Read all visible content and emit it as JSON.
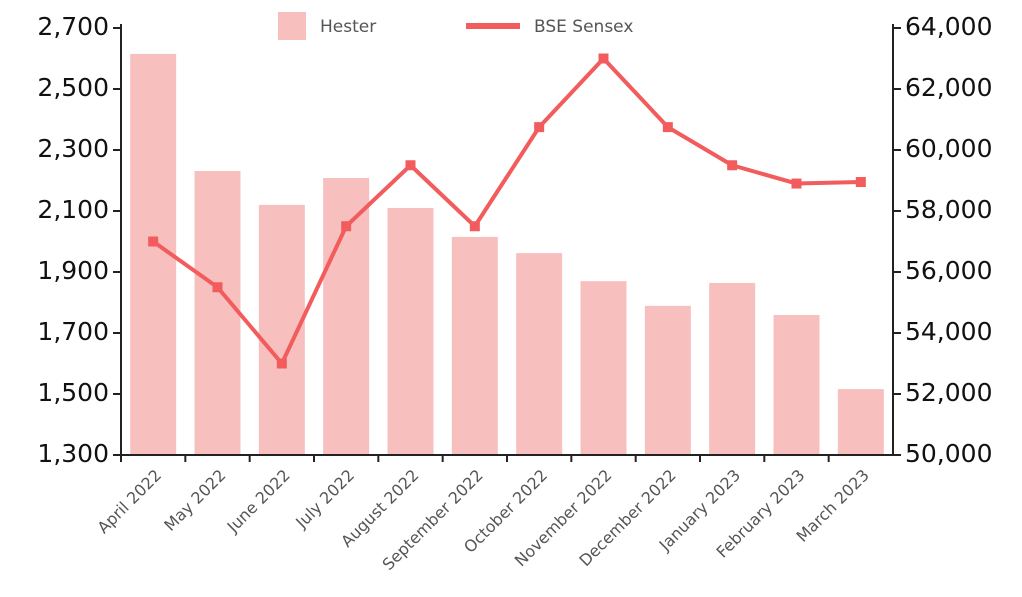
{
  "chart_data": {
    "type": "bar_line",
    "categories": [
      "April 2022",
      "May 2022",
      "June 2022",
      "July 2022",
      "August 2022",
      "September 2022",
      "October 2022",
      "November 2022",
      "December 2022",
      "January 2023",
      "February 2023",
      "March 2023"
    ],
    "series": [
      {
        "name": "Hester",
        "type": "bar",
        "color": "#f8bfbf",
        "axis": "y",
        "values": [
          2615,
          2231,
          2120,
          2208,
          2110,
          2015,
          1962,
          1870,
          1789,
          1864,
          1759,
          1516
        ]
      },
      {
        "name": "BSE Sensex",
        "type": "line",
        "color": "#f25c5c",
        "axis": "y2",
        "values": [
          57000,
          55500,
          53000,
          57500,
          59500,
          57500,
          60750,
          63000,
          60750,
          59500,
          58900,
          58950
        ]
      }
    ],
    "ylim": [
      1300,
      2700
    ],
    "yticks": [
      {
        "value": 1300,
        "label": "1,300"
      },
      {
        "value": 1500,
        "label": "1,500"
      },
      {
        "value": 1700,
        "label": "1,700"
      },
      {
        "value": 1900,
        "label": "1,900"
      },
      {
        "value": 2100,
        "label": "2,100"
      },
      {
        "value": 2300,
        "label": "2,300"
      },
      {
        "value": 2500,
        "label": "2,500"
      },
      {
        "value": 2700,
        "label": "2,700"
      }
    ],
    "y2lim": [
      50000,
      64000
    ],
    "y2ticks": [
      {
        "value": 50000,
        "label": "50,000"
      },
      {
        "value": 52000,
        "label": "52,000"
      },
      {
        "value": 54000,
        "label": "54,000"
      },
      {
        "value": 56000,
        "label": "56,000"
      },
      {
        "value": 58000,
        "label": "58,000"
      },
      {
        "value": 60000,
        "label": "60,000"
      },
      {
        "value": 62000,
        "label": "62,000"
      },
      {
        "value": 64000,
        "label": "64,000"
      }
    ],
    "legend": "top",
    "grid": false
  }
}
